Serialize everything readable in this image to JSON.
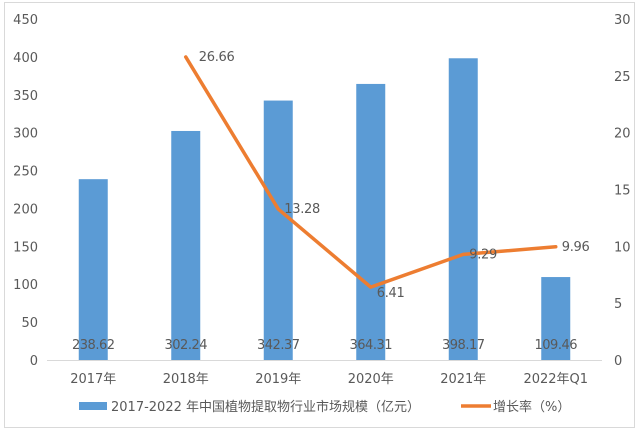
{
  "chart_data": {
    "type": "bar+line",
    "title": "",
    "categories": [
      "2017年",
      "2018年",
      "2019年",
      "2020年",
      "2021年",
      "2022年Q1"
    ],
    "series": [
      {
        "name": "2017-2022 年中国植物提取物行业市场规模（亿元）",
        "type": "bar",
        "axis": "left",
        "color": "#5b9bd5",
        "values": [
          238.62,
          302.24,
          342.37,
          364.31,
          398.17,
          109.46
        ]
      },
      {
        "name": "增长率（%）",
        "type": "line",
        "axis": "right",
        "color": "#ed7d31",
        "values": [
          null,
          26.66,
          13.28,
          6.41,
          9.29,
          9.96
        ]
      }
    ],
    "bar_labels": [
      "238.62",
      "302.24",
      "342.37",
      "364.31",
      "398.17",
      "109.46"
    ],
    "line_labels": [
      "",
      "26.66",
      "13.28",
      "6.41",
      "9.29",
      "9.96"
    ],
    "y_left": {
      "min": 0,
      "max": 450,
      "step": 50,
      "ticks": [
        "0",
        "50",
        "100",
        "150",
        "200",
        "250",
        "300",
        "350",
        "400",
        "450"
      ]
    },
    "y_right": {
      "min": 0,
      "max": 30,
      "step": 5,
      "ticks": [
        "0",
        "5",
        "10",
        "15",
        "20",
        "25",
        "30"
      ]
    },
    "xlabel": "",
    "ylabel": "",
    "grid": false,
    "legend_position": "bottom"
  },
  "legend": {
    "bar_label": "2017-2022 年中国植物提取物行业市场规模（亿元）",
    "line_label": "增长率（%）"
  }
}
